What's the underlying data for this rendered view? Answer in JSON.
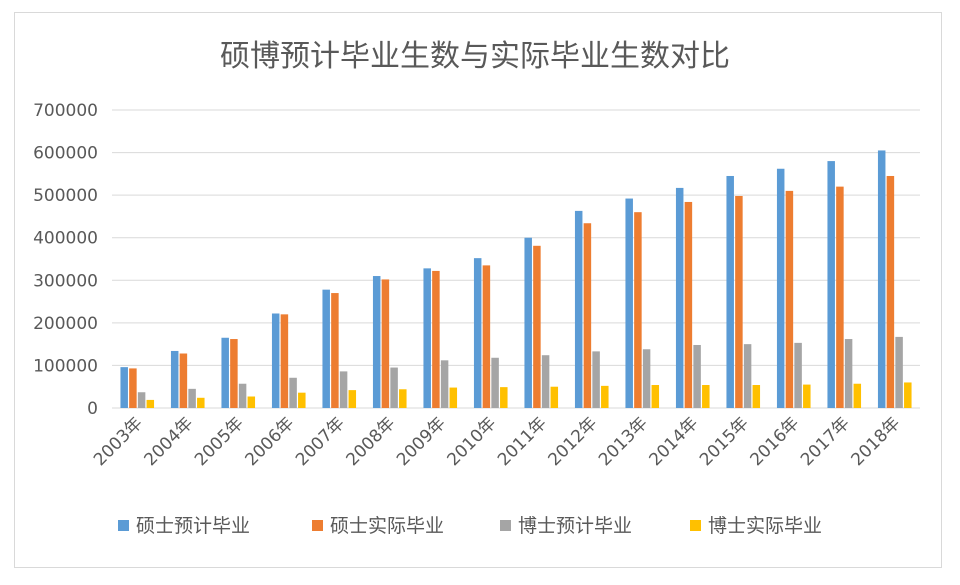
{
  "chart_data": {
    "type": "bar",
    "title": "硕博预计毕业生数与实际毕业生数对比",
    "xlabel": "",
    "ylabel": "",
    "ylim": [
      0,
      700000
    ],
    "yticks": [
      "0",
      "100000",
      "200000",
      "300000",
      "400000",
      "500000",
      "600000",
      "700000"
    ],
    "categories": [
      "2003年",
      "2004年",
      "2005年",
      "2006年",
      "2007年",
      "2008年",
      "2009年",
      "2010年",
      "2011年",
      "2012年",
      "2013年",
      "2014年",
      "2015年",
      "2016年",
      "2017年",
      "2018年"
    ],
    "grid": true,
    "legend_position": "bottom",
    "series": [
      {
        "name": "硕士预计毕业",
        "color": "#5b9bd5",
        "values": [
          96000,
          134000,
          165000,
          222000,
          278000,
          310000,
          328000,
          352000,
          400000,
          463000,
          492000,
          517000,
          545000,
          562000,
          580000,
          605000
        ]
      },
      {
        "name": "硕士实际毕业",
        "color": "#ed7d31",
        "values": [
          93000,
          128000,
          162000,
          220000,
          270000,
          302000,
          322000,
          335000,
          381000,
          434000,
          460000,
          484000,
          498000,
          510000,
          520000,
          545000
        ]
      },
      {
        "name": "博士预计毕业",
        "color": "#a5a5a5",
        "values": [
          37000,
          45000,
          57000,
          71000,
          86000,
          95000,
          112000,
          118000,
          124000,
          133000,
          138000,
          148000,
          150000,
          153000,
          162000,
          167000
        ]
      },
      {
        "name": "博士实际毕业",
        "color": "#ffc000",
        "values": [
          19000,
          24000,
          27000,
          36000,
          42000,
          44000,
          48000,
          49000,
          50000,
          52000,
          54000,
          54000,
          54000,
          55000,
          57000,
          60000
        ]
      }
    ]
  }
}
